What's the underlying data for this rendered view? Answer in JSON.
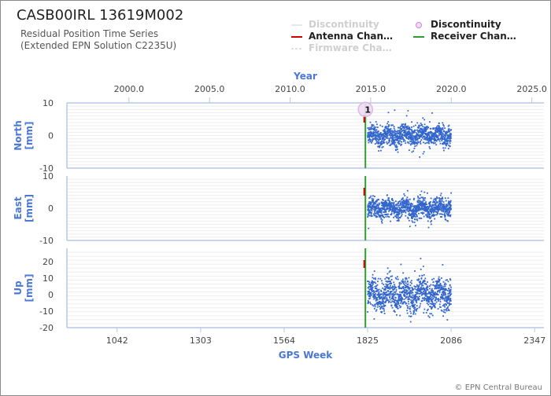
{
  "header": {
    "station": "CASB00IRL 13619M002",
    "subtitle_1": "Residual Position Time Series",
    "subtitle_2": "(Extended EPN Solution C2235U)"
  },
  "legend": [
    {
      "label": "Discontinuity",
      "symbol": "circle",
      "color": "#d9b3e6",
      "dimmed": true
    },
    {
      "label": "Discontinuity",
      "symbol": "circle",
      "color": "#d9b3e6",
      "dimmed": false
    },
    {
      "label": "Antenna Chan…",
      "symbol": "line",
      "color": "#cc0000",
      "dimmed": false
    },
    {
      "label": "Receiver Chan…",
      "symbol": "line",
      "color": "#2ca02c",
      "dimmed": false
    },
    {
      "label": "Firmware Cha…",
      "symbol": "dashed",
      "color": "#cccccc",
      "dimmed": true
    }
  ],
  "footer": {
    "copyright": "© EPN Central Bureau"
  },
  "chart_data": {
    "type": "scatter",
    "top_axis": {
      "label": "Year",
      "ticks": [
        "2000.0",
        "2005.0",
        "2010.0",
        "2015.0",
        "2020.0",
        "2025.0"
      ],
      "range": [
        1996.15,
        2025.75
      ]
    },
    "bottom_axis": {
      "label": "GPS Week",
      "ticks": [
        "1042",
        "1303",
        "1564",
        "1825",
        "2086",
        "2347"
      ],
      "range": [
        885,
        2376
      ]
    },
    "series_color": "#3366cc",
    "data_span_weeks": [
      1825,
      2086
    ],
    "panels": [
      {
        "name": "north",
        "ylabel": "North [mm]",
        "ylim": [
          -10,
          10
        ],
        "yticks": [
          "10",
          "0",
          "-10"
        ],
        "noise_sd_mm": 1.6,
        "outlier_range_mm": [
          -9,
          9
        ]
      },
      {
        "name": "east",
        "ylabel": "East [mm]",
        "ylim": [
          -10,
          10
        ],
        "yticks": [
          "10",
          "0",
          "-10"
        ],
        "noise_sd_mm": 1.5,
        "outlier_range_mm": [
          -9,
          4
        ]
      },
      {
        "name": "up",
        "ylabel": "Up [mm]",
        "ylim": [
          -20,
          28
        ],
        "yticks": [
          "20",
          "10",
          "0",
          "-10",
          "-20"
        ],
        "noise_sd_mm": 5.0,
        "outlier_range_mm": [
          -18,
          26
        ]
      }
    ],
    "antenna_change_week": 1818,
    "receiver_change_week": 1818,
    "discontinuity": {
      "label": "1",
      "week": 1818,
      "panel": "north",
      "value_mm": 8
    }
  }
}
